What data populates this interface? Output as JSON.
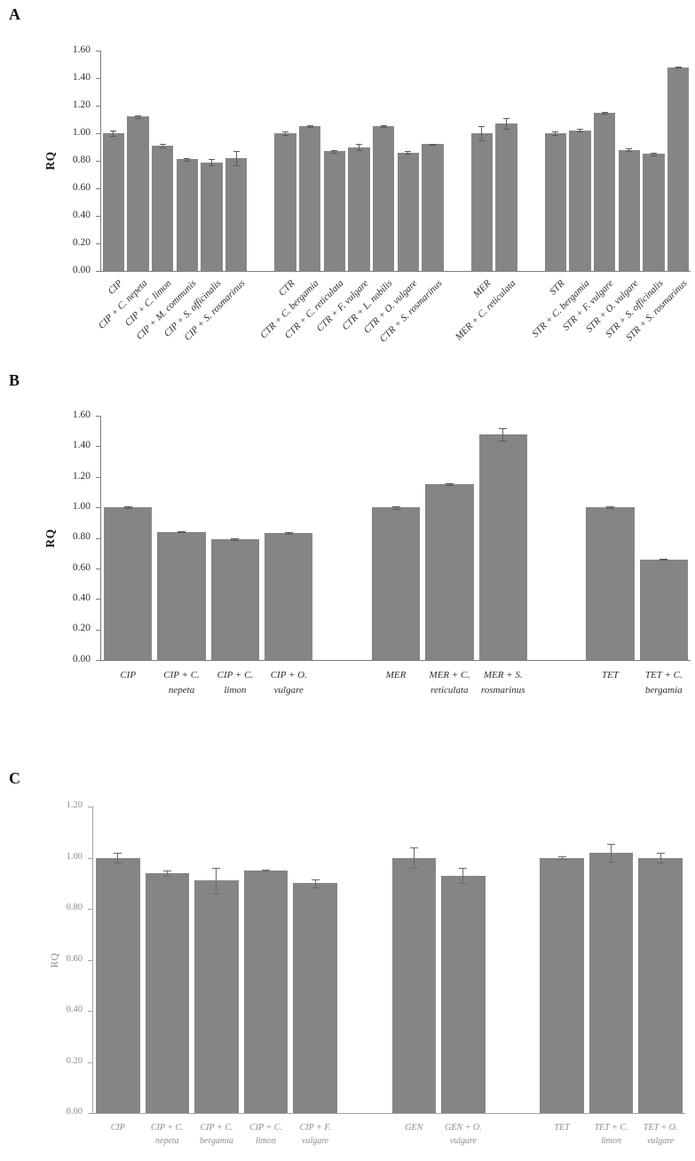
{
  "figure": {
    "ylabel": "RQ",
    "bar_color": "#858585",
    "error_bar_color": "#5a5a5a"
  },
  "chart_data": [
    {
      "type": "bar",
      "panel": "A",
      "ylabel": "RQ",
      "ylim": [
        0,
        1.6
      ],
      "yticks": [
        "0.00",
        "0.20",
        "0.40",
        "0.60",
        "0.80",
        "1.00",
        "1.20",
        "1.40",
        "1.60"
      ],
      "grid": false,
      "legend": "none",
      "bar_color": "#858585",
      "error_bar_color": "#5a5a5a",
      "xlabel_style": "rotated-45-italic",
      "groups": [
        {
          "group": "CIP",
          "bars": [
            {
              "label": "CIP",
              "value": 1.0,
              "error": 0.02
            },
            {
              "label": "CIP + C. nepeta",
              "value": 1.12,
              "error": 0.01
            },
            {
              "label": "CIP + C. limon",
              "value": 0.91,
              "error": 0.01
            },
            {
              "label": "CIP + M. communis",
              "value": 0.81,
              "error": 0.01
            },
            {
              "label": "CIP + S. officinalis",
              "value": 0.79,
              "error": 0.02
            },
            {
              "label": "CIP + S. rosmarinus",
              "value": 0.82,
              "error": 0.05
            }
          ]
        },
        {
          "group": "CTR",
          "bars": [
            {
              "label": "CTR",
              "value": 1.0,
              "error": 0.01
            },
            {
              "label": "CTR + C. bergamia",
              "value": 1.05,
              "error": 0.005
            },
            {
              "label": "CTR + C. reticulata",
              "value": 0.87,
              "error": 0.01
            },
            {
              "label": "CTR + F. vulgare",
              "value": 0.9,
              "error": 0.02
            },
            {
              "label": "CTR + L. nobilis",
              "value": 1.05,
              "error": 0.005
            },
            {
              "label": "CTR + O. vulgare",
              "value": 0.86,
              "error": 0.01
            },
            {
              "label": "CTR + S. rosmarinus",
              "value": 0.92,
              "error": 0.005
            }
          ]
        },
        {
          "group": "MER",
          "bars": [
            {
              "label": "MER",
              "value": 1.0,
              "error": 0.05
            },
            {
              "label": "MER + C. reticulata",
              "value": 1.07,
              "error": 0.04
            }
          ]
        },
        {
          "group": "STR",
          "bars": [
            {
              "label": "STR",
              "value": 1.0,
              "error": 0.01
            },
            {
              "label": "STR + C. bergamia",
              "value": 1.02,
              "error": 0.01
            },
            {
              "label": "STR + F. vulgare",
              "value": 1.15,
              "error": 0.005
            },
            {
              "label": "STR + O. vulgare",
              "value": 0.88,
              "error": 0.01
            },
            {
              "label": "STR + S. officinalis",
              "value": 0.85,
              "error": 0.01
            },
            {
              "label": "STR + S. rosmarinus",
              "value": 1.48,
              "error": 0.005
            }
          ]
        }
      ]
    },
    {
      "type": "bar",
      "panel": "B",
      "ylabel": "RQ",
      "ylim": [
        0,
        1.6
      ],
      "yticks": [
        "0.00",
        "0.20",
        "0.40",
        "0.60",
        "0.80",
        "1.00",
        "1.20",
        "1.40",
        "1.60"
      ],
      "grid": false,
      "legend": "none",
      "bar_color": "#858585",
      "error_bar_color": "#5a5a5a",
      "xlabel_style": "horizontal-two-line-italic",
      "groups": [
        {
          "group": "CIP",
          "bars": [
            {
              "label": "CIP",
              "label_lines": [
                "CIP"
              ],
              "value": 1.0,
              "error": 0.005
            },
            {
              "label": "CIP + C. nepeta",
              "label_lines": [
                "CIP + C.",
                "nepeta"
              ],
              "value": 0.84,
              "error": 0.005
            },
            {
              "label": "CIP + C. limon",
              "label_lines": [
                "CIP + C.",
                "limon"
              ],
              "value": 0.79,
              "error": 0.005
            },
            {
              "label": "CIP + O. vulgare",
              "label_lines": [
                "CIP + O.",
                "vulgare"
              ],
              "value": 0.83,
              "error": 0.005
            }
          ]
        },
        {
          "group": "MER",
          "bars": [
            {
              "label": "MER",
              "label_lines": [
                "MER"
              ],
              "value": 1.0,
              "error": 0.008
            },
            {
              "label": "MER + C. reticulata",
              "label_lines": [
                "MER + C.",
                "reticulata"
              ],
              "value": 1.15,
              "error": 0.005
            },
            {
              "label": "MER + S. rosmarinus",
              "label_lines": [
                "MER + S.",
                "rosmarinus"
              ],
              "value": 1.48,
              "error": 0.04
            }
          ]
        },
        {
          "group": "TET",
          "bars": [
            {
              "label": "TET",
              "label_lines": [
                "TET"
              ],
              "value": 1.0,
              "error": 0.004
            },
            {
              "label": "TET + C. bergamia",
              "label_lines": [
                "TET + C.",
                "bergamia"
              ],
              "value": 0.66,
              "error": 0.005
            }
          ]
        }
      ]
    },
    {
      "type": "bar",
      "panel": "C",
      "ylabel": "RQ",
      "ylim": [
        0,
        1.2
      ],
      "yticks": [
        "0.00",
        "0.20",
        "0.40",
        "0.60",
        "0.80",
        "1.00",
        "1.20"
      ],
      "grid": false,
      "legend": "none",
      "bar_color": "#858585",
      "error_bar_color": "#6a6a6a",
      "xlabel_style": "horizontal-two-line-italic",
      "groups": [
        {
          "group": "CIP",
          "bars": [
            {
              "label": "CIP",
              "label_lines": [
                "CIP"
              ],
              "value": 1.0,
              "error": 0.02
            },
            {
              "label": "CIP + C. nepeta",
              "label_lines": [
                "CIP + C.",
                "nepeta"
              ],
              "value": 0.94,
              "error": 0.01
            },
            {
              "label": "CIP + C. bergamia",
              "label_lines": [
                "CIP + C.",
                "bergamia"
              ],
              "value": 0.91,
              "error": 0.05
            },
            {
              "label": "CIP + C. limon",
              "label_lines": [
                "CIP + C.",
                "limon"
              ],
              "value": 0.95,
              "error": 0.004
            },
            {
              "label": "CIP + F. vulgare",
              "label_lines": [
                "CIP + F.",
                "vulgare"
              ],
              "value": 0.9,
              "error": 0.015
            }
          ]
        },
        {
          "group": "GEN",
          "bars": [
            {
              "label": "GEN",
              "label_lines": [
                "GEN"
              ],
              "value": 1.0,
              "error": 0.04
            },
            {
              "label": "GEN + O. vulgare",
              "label_lines": [
                "GEN + O.",
                "vulgare"
              ],
              "value": 0.93,
              "error": 0.03
            }
          ]
        },
        {
          "group": "TET",
          "bars": [
            {
              "label": "TET",
              "label_lines": [
                "TET"
              ],
              "value": 1.0,
              "error": 0.005
            },
            {
              "label": "TET + C. limon",
              "label_lines": [
                "TET + C.",
                "limon"
              ],
              "value": 1.02,
              "error": 0.035
            },
            {
              "label": "TET + O. vulgare",
              "label_lines": [
                "TET + O.",
                "vulgare"
              ],
              "value": 1.0,
              "error": 0.02
            }
          ]
        }
      ]
    }
  ]
}
